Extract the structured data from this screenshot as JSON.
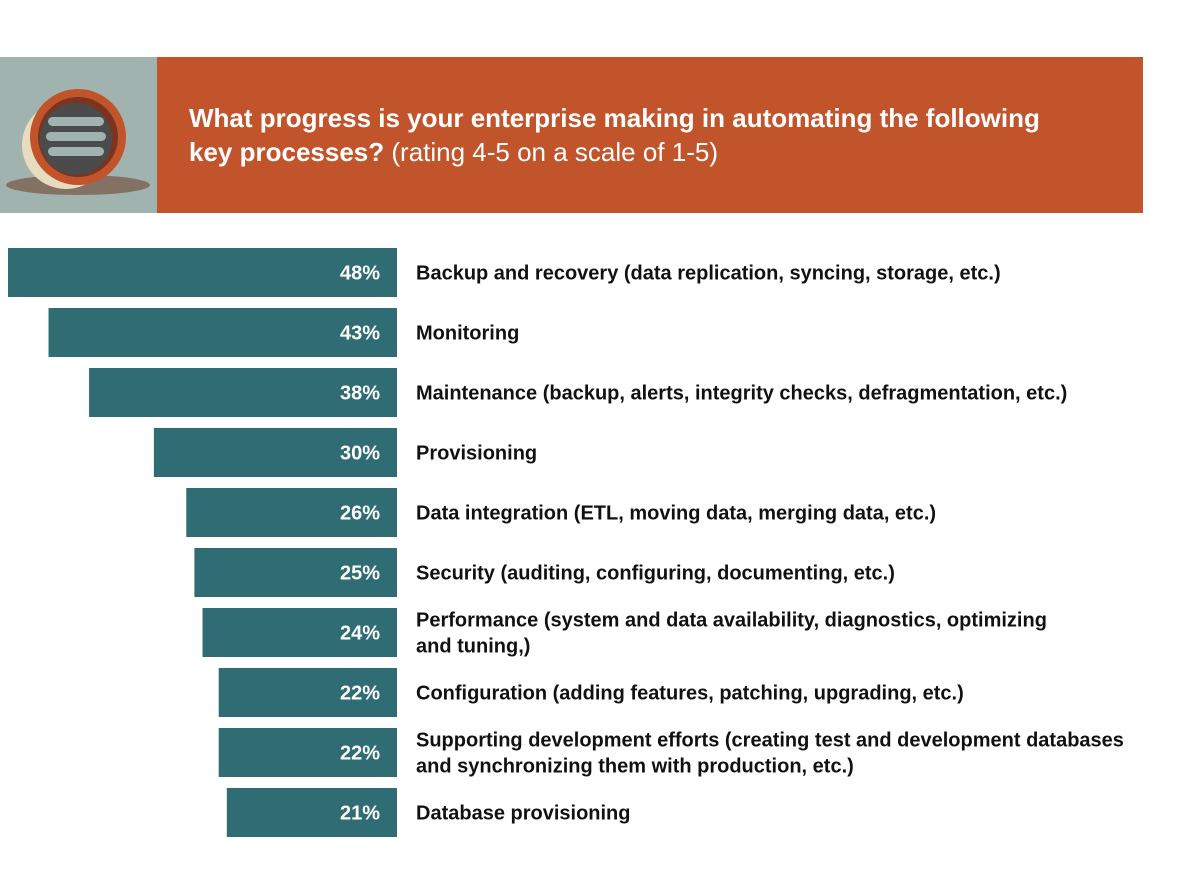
{
  "header": {
    "title_main": "What progress is your enterprise making in automating the following key processes?",
    "title_sub": "(rating 4-5 on a scale of 1-5)",
    "icon": "database-icon"
  },
  "colors": {
    "banner": "#c1542a",
    "icon_panel": "#a0b3ae",
    "bar": "#2f6c73"
  },
  "chart_data": {
    "type": "bar",
    "orientation": "horizontal",
    "title": "What progress is your enterprise making in automating the following key processes? (rating 4-5 on a scale of 1-5)",
    "unit": "%",
    "xlim": [
      0,
      48
    ],
    "categories": [
      [
        "Backup and recovery (data replication, syncing, storage, etc.)"
      ],
      [
        "Monitoring"
      ],
      [
        "Maintenance (backup, alerts, integrity checks, defragmentation, etc.)"
      ],
      [
        "Provisioning"
      ],
      [
        "Data integration (ETL, moving data, merging data, etc.)"
      ],
      [
        "Security (auditing, configuring, documenting, etc.)"
      ],
      [
        "Performance (system and data availability, diagnostics, optimizing",
        "and tuning,)"
      ],
      [
        "Configuration (adding features, patching, upgrading, etc.)"
      ],
      [
        "Supporting development efforts (creating test and development databases",
        "and synchronizing them with production, etc.)"
      ],
      [
        "Database provisioning"
      ]
    ],
    "values": [
      48,
      43,
      38,
      30,
      26,
      25,
      24,
      22,
      22,
      21
    ],
    "value_labels": [
      "48%",
      "43%",
      "38%",
      "30%",
      "26%",
      "25%",
      "24%",
      "22%",
      "22%",
      "21%"
    ]
  }
}
